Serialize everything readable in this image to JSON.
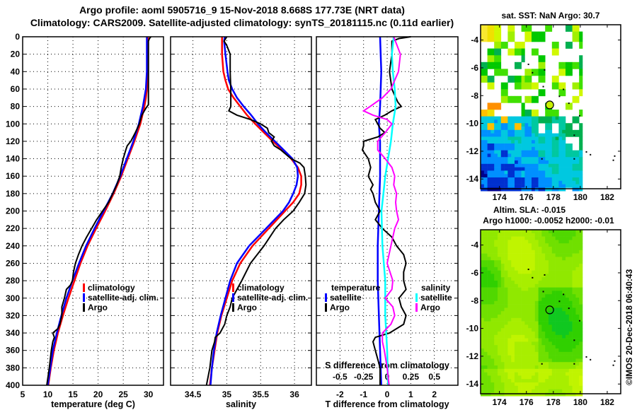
{
  "title": {
    "line1": "Argo profile: aoml 5905716_9 15-Nov-2018 8.668S 177.73E (NRT data)",
    "line2": "Climatology: CARS2009. Satellite-adjusted climatology: synTS_20181115.nc (0.11d earlier)"
  },
  "colors": {
    "climatology": "#ff0000",
    "satellite": "#0000ff",
    "argo": "#000000",
    "salinity_satellite": "#00ffff",
    "salinity_argo": "#ff00ff"
  },
  "chart_data": [
    {
      "type": "line",
      "name": "temperature-profile",
      "xlabel": "temperature (deg C)",
      "ylabel": "",
      "xlim": [
        5,
        33
      ],
      "ylim": [
        400,
        0
      ],
      "xticks": [
        "5",
        "10",
        "15",
        "20",
        "25",
        "30"
      ],
      "xtick_values": [
        5,
        10,
        15,
        20,
        25,
        30
      ],
      "yticks": [
        "0",
        "20",
        "40",
        "60",
        "80",
        "100",
        "120",
        "140",
        "160",
        "180",
        "200",
        "220",
        "240",
        "260",
        "280",
        "300",
        "320",
        "340",
        "360",
        "380",
        "400"
      ],
      "ytick_values": [
        0,
        20,
        40,
        60,
        80,
        100,
        120,
        140,
        160,
        180,
        200,
        220,
        240,
        260,
        280,
        300,
        320,
        340,
        360,
        380,
        400
      ],
      "grid": true,
      "legend_position": "lower-middle",
      "legend": [
        "climatology",
        "satellite-adj. clim.",
        "Argo"
      ],
      "series": [
        {
          "name": "climatology",
          "color": "#ff0000",
          "depth": [
            0,
            20,
            40,
            60,
            70,
            80,
            90,
            100,
            120,
            140,
            160,
            180,
            200,
            220,
            240,
            260,
            280,
            300,
            320,
            340,
            360,
            380,
            400
          ],
          "values": [
            29.9,
            29.9,
            29.9,
            29.7,
            29.5,
            29.2,
            28.8,
            28.4,
            27.2,
            25.9,
            24.6,
            23.1,
            21.4,
            19.6,
            17.9,
            16.5,
            15.3,
            14.1,
            13.0,
            12.0,
            11.2,
            10.6,
            10.1
          ]
        },
        {
          "name": "satellite-adj. clim.",
          "color": "#0000ff",
          "depth": [
            0,
            20,
            40,
            60,
            70,
            80,
            90,
            100,
            120,
            140,
            160,
            180,
            200,
            220,
            240,
            260,
            280,
            300,
            320,
            340,
            360,
            380,
            400
          ],
          "values": [
            29.7,
            29.7,
            29.7,
            29.5,
            29.2,
            28.9,
            28.5,
            28.1,
            27.0,
            25.7,
            24.4,
            22.9,
            21.1,
            19.3,
            17.6,
            16.2,
            14.9,
            13.7,
            12.7,
            11.8,
            11.0,
            10.5,
            10.0
          ]
        },
        {
          "name": "Argo",
          "color": "#000000",
          "depth": [
            0,
            2,
            5,
            20,
            40,
            60,
            78,
            82,
            90,
            100,
            110,
            120,
            125,
            130,
            140,
            150,
            160,
            170,
            180,
            190,
            200,
            210,
            220,
            230,
            240,
            250,
            260,
            270,
            280,
            285,
            290,
            300,
            310,
            320,
            330,
            335,
            340,
            345,
            350,
            360,
            380,
            400
          ],
          "values": [
            30.5,
            30.2,
            30.0,
            30.0,
            30.0,
            30.0,
            30.0,
            29.5,
            28.7,
            28.2,
            27.4,
            26.5,
            25.8,
            25.5,
            25.0,
            24.6,
            24.3,
            23.7,
            22.9,
            22.1,
            20.9,
            19.7,
            18.7,
            17.7,
            16.8,
            16.1,
            15.5,
            15.1,
            14.9,
            14.5,
            13.7,
            13.3,
            12.8,
            12.8,
            12.4,
            12.0,
            11.0,
            11.3,
            11.0,
            10.7,
            10.3,
            9.8
          ]
        }
      ]
    },
    {
      "type": "line",
      "name": "salinity-profile",
      "xlabel": "salinity",
      "xlim": [
        34.17,
        36.25
      ],
      "ylim": [
        400,
        0
      ],
      "xticks": [
        "34.5",
        "35",
        "35.5",
        "36"
      ],
      "xtick_values": [
        34.5,
        35,
        35.5,
        36
      ],
      "ytick_values": [
        0,
        20,
        40,
        60,
        80,
        100,
        120,
        140,
        160,
        180,
        200,
        220,
        240,
        260,
        280,
        300,
        320,
        340,
        360,
        380,
        400
      ],
      "grid": true,
      "legend_position": "lower-middle",
      "legend": [
        "climatology",
        "satellite-adj. clim.",
        "Argo"
      ],
      "series": [
        {
          "name": "climatology",
          "color": "#ff0000",
          "depth": [
            0,
            20,
            40,
            50,
            60,
            70,
            80,
            90,
            100,
            110,
            120,
            130,
            140,
            150,
            160,
            170,
            180,
            190,
            200,
            220,
            240,
            260,
            280,
            300,
            320,
            340,
            360,
            380,
            400
          ],
          "values": [
            34.93,
            34.93,
            34.95,
            34.98,
            35.02,
            35.1,
            35.2,
            35.3,
            35.42,
            35.55,
            35.68,
            35.82,
            35.95,
            36.05,
            36.1,
            36.1,
            36.07,
            35.98,
            35.86,
            35.62,
            35.38,
            35.2,
            35.08,
            35.0,
            34.92,
            34.86,
            34.82,
            34.78,
            34.75
          ]
        },
        {
          "name": "satellite-adj. clim.",
          "color": "#0000ff",
          "depth": [
            0,
            5,
            20,
            40,
            50,
            60,
            70,
            80,
            90,
            100,
            110,
            120,
            130,
            140,
            150,
            160,
            170,
            180,
            190,
            200,
            220,
            240,
            260,
            280,
            300,
            320,
            340,
            360,
            380,
            400
          ],
          "values": [
            34.97,
            34.96,
            34.98,
            35.01,
            35.03,
            35.08,
            35.15,
            35.25,
            35.36,
            35.46,
            35.58,
            35.71,
            35.84,
            35.97,
            36.04,
            36.05,
            36.03,
            35.98,
            35.92,
            35.83,
            35.58,
            35.33,
            35.15,
            35.05,
            34.98,
            34.91,
            34.85,
            34.81,
            34.78,
            34.76
          ]
        },
        {
          "name": "Argo",
          "color": "#000000",
          "depth": [
            0,
            5,
            10,
            20,
            40,
            60,
            80,
            85,
            90,
            95,
            100,
            105,
            110,
            115,
            120,
            125,
            130,
            140,
            145,
            150,
            160,
            170,
            180,
            190,
            200,
            210,
            220,
            240,
            260,
            280,
            290,
            300,
            310,
            320,
            330,
            340,
            345,
            350,
            360,
            380,
            400
          ],
          "values": [
            35.0,
            34.96,
            35.0,
            35.05,
            35.05,
            35.06,
            35.06,
            35.03,
            35.15,
            35.35,
            35.5,
            35.6,
            35.62,
            35.7,
            35.66,
            35.7,
            35.8,
            35.95,
            36.08,
            36.14,
            36.16,
            36.17,
            36.15,
            36.07,
            35.98,
            35.84,
            35.72,
            35.55,
            35.35,
            35.22,
            35.15,
            35.08,
            35.05,
            35.0,
            34.97,
            34.9,
            34.83,
            34.82,
            34.78,
            34.75,
            34.7
          ]
        }
      ]
    },
    {
      "type": "line",
      "name": "difference-profile",
      "xlabel": "T difference from climatology",
      "xlabel_top": "S difference from climatology",
      "xlim": [
        -3,
        3
      ],
      "xlim_salinity": [
        -0.75,
        0.75
      ],
      "ylim": [
        400,
        0
      ],
      "xticks": [
        "-2",
        "-1",
        "0",
        "1",
        "2"
      ],
      "xtick_values": [
        -2,
        -1,
        0,
        1,
        2
      ],
      "xticks_salinity": [
        "-0.5",
        "-0.25",
        "0",
        "0.25",
        "0.5"
      ],
      "xtick_values_salinity": [
        -0.5,
        -0.25,
        0,
        0.25,
        0.5
      ],
      "ytick_values": [
        0,
        20,
        40,
        60,
        80,
        100,
        120,
        140,
        160,
        180,
        200,
        220,
        240,
        260,
        280,
        300,
        320,
        340,
        360,
        380,
        400
      ],
      "grid": true,
      "legend_temperature": {
        "title": "temperature",
        "items": [
          "satellite",
          "Argo"
        ]
      },
      "legend_salinity": {
        "title": "salinity",
        "items": [
          "satellite",
          "Argo"
        ]
      },
      "series": [
        {
          "name": "temperature satellite",
          "color": "#0000ff",
          "axis": "T",
          "depth": [
            0,
            40,
            80,
            100,
            120,
            160,
            200,
            240,
            280,
            320,
            360,
            400
          ],
          "values": [
            -0.3,
            -0.25,
            -0.3,
            -0.35,
            -0.3,
            -0.3,
            -0.35,
            -0.4,
            -0.4,
            -0.35,
            -0.3,
            -0.25
          ]
        },
        {
          "name": "temperature Argo",
          "color": "#000000",
          "axis": "T",
          "depth": [
            0,
            2,
            5,
            20,
            40,
            60,
            75,
            80,
            85,
            90,
            95,
            100,
            105,
            110,
            115,
            120,
            125,
            130,
            140,
            150,
            160,
            170,
            175,
            180,
            190,
            200,
            210,
            220,
            230,
            240,
            250,
            260,
            270,
            280,
            290,
            300,
            310,
            320,
            330,
            340,
            345,
            350,
            360,
            370,
            380,
            390,
            400
          ],
          "values": [
            1.0,
            0.5,
            0.2,
            0.2,
            0.1,
            0.2,
            0.45,
            0.6,
            0.2,
            -0.1,
            -0.5,
            -0.4,
            -0.3,
            -0.1,
            -0.4,
            -1.0,
            -1.0,
            -1.05,
            -0.8,
            -0.7,
            -0.8,
            -0.6,
            -0.7,
            -0.6,
            -0.5,
            -0.3,
            -0.5,
            -0.2,
            0.2,
            0.4,
            0.7,
            0.8,
            0.7,
            0.7,
            0.8,
            0.5,
            0.6,
            0.8,
            0.7,
            0.1,
            -0.5,
            -0.6,
            -0.5,
            -0.4,
            -0.3,
            -0.3,
            -0.3
          ]
        },
        {
          "name": "salinity satellite",
          "color": "#00ffff",
          "axis": "S",
          "depth": [
            0,
            20,
            40,
            60,
            80,
            100,
            120,
            140,
            160,
            180,
            200,
            240,
            280,
            320,
            360,
            400
          ],
          "values": [
            0.07,
            0.05,
            0.06,
            0.08,
            0.09,
            0.06,
            0.04,
            0.01,
            -0.02,
            -0.04,
            -0.06,
            -0.05,
            -0.02,
            -0.02,
            0.0,
            0.01
          ]
        },
        {
          "name": "salinity Argo",
          "color": "#ff00ff",
          "axis": "S",
          "depth": [
            0,
            20,
            40,
            60,
            70,
            80,
            85,
            90,
            95,
            100,
            110,
            120,
            130,
            140,
            150,
            160,
            170,
            180,
            190,
            200,
            210,
            220,
            240,
            260,
            270,
            280,
            290,
            300,
            310,
            320,
            330,
            340,
            350,
            360,
            380,
            400
          ],
          "values": [
            0.07,
            0.14,
            0.12,
            0.04,
            -0.05,
            -0.18,
            -0.25,
            -0.15,
            0.0,
            0.05,
            -0.02,
            -0.1,
            -0.1,
            -0.02,
            0.05,
            0.08,
            0.07,
            0.1,
            0.09,
            0.1,
            0.12,
            0.08,
            0.04,
            0.0,
            0.03,
            0.06,
            0.05,
            -0.02,
            0.06,
            0.08,
            0.04,
            -0.05,
            -0.05,
            -0.03,
            0.0,
            0.02
          ]
        }
      ]
    },
    {
      "type": "heatmap",
      "name": "sst-map",
      "title": "sat. SST: NaN Argo: 30.7",
      "xlim": [
        172.6,
        183.0
      ],
      "ylim": [
        -14.7,
        -2.9
      ],
      "xticks": [
        "174",
        "176",
        "178",
        "180",
        "182"
      ],
      "xtick_values": [
        174,
        176,
        178,
        180,
        182
      ],
      "yticks": [
        "-4",
        "-6",
        "-8",
        "-10",
        "-12",
        "-14"
      ],
      "ytick_values": [
        -4,
        -6,
        -8,
        -10,
        -12,
        -14
      ],
      "marker": {
        "lon": 177.73,
        "lat": -8.668,
        "value": 30.7
      }
    },
    {
      "type": "heatmap",
      "name": "sla-map",
      "title": "Altim. SLA: -0.015",
      "subtitle": "Argo h1000: -0.0052 h2000: -0.01",
      "xlim": [
        172.6,
        183.0
      ],
      "ylim": [
        -14.7,
        -2.9
      ],
      "xticks": [
        "174",
        "176",
        "178",
        "180",
        "182"
      ],
      "xtick_values": [
        174,
        176,
        178,
        180,
        182
      ],
      "yticks": [
        "-4",
        "-6",
        "-8",
        "-10",
        "-12",
        "-14"
      ],
      "ytick_values": [
        -4,
        -6,
        -8,
        -10,
        -12,
        -14
      ],
      "marker": {
        "lon": 177.73,
        "lat": -8.668
      }
    }
  ],
  "credit": "©IMOS 20-Dec-2018 06:40:43"
}
